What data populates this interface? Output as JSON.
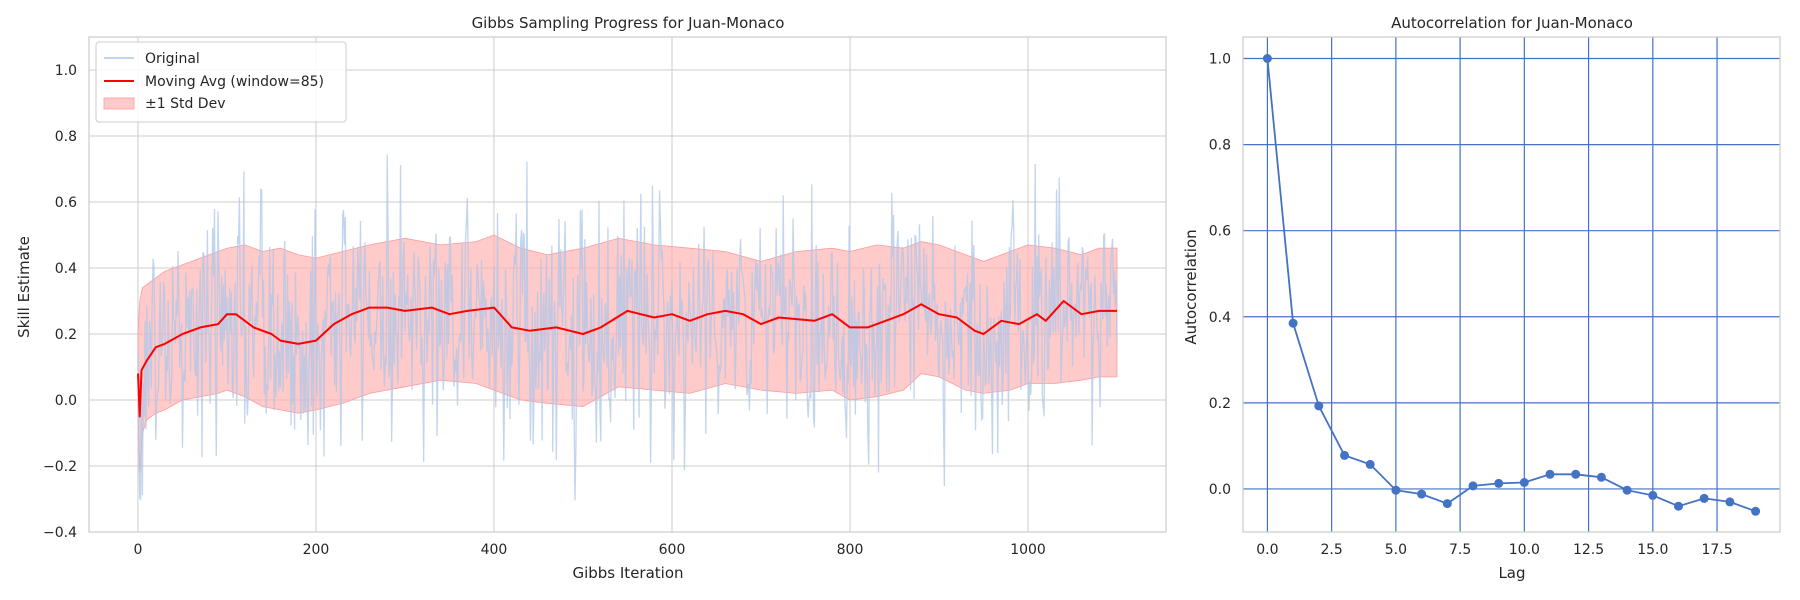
{
  "colors": {
    "grid": "#cccccc",
    "grid_right": "#4472c4",
    "spine": "#cccccc",
    "original": "#aec7e8",
    "moving_avg": "#ff0000",
    "band_fill": "#ffb3b3",
    "band_edge": "#ff9c9c",
    "acf_line": "#4472c4"
  },
  "chart_data": [
    {
      "type": "line",
      "title": "Gibbs Sampling Progress for Juan-Monaco",
      "xlabel": "Gibbs Iteration",
      "ylabel": "Skill Estimate",
      "xlim": [
        -55,
        1155
      ],
      "ylim": [
        -0.4,
        1.1
      ],
      "xticks": [
        0,
        200,
        400,
        600,
        800,
        1000
      ],
      "yticks": [
        -0.4,
        -0.2,
        0.0,
        0.2,
        0.4,
        0.6,
        0.8,
        1.0
      ],
      "xtick_labels": [
        "0",
        "200",
        "400",
        "600",
        "800",
        "1000"
      ],
      "ytick_labels": [
        "−0.4",
        "−0.2",
        "0.0",
        "0.2",
        "0.4",
        "0.6",
        "0.8",
        "1.0"
      ],
      "grid": true,
      "legend": {
        "position": "top-left",
        "entries": [
          "Original",
          "Moving Avg (window=85)",
          "±1 Std Dev"
        ]
      },
      "n_iterations": 1100,
      "moving_avg_window": 85,
      "series": [
        {
          "name": "Moving Avg (window=85)",
          "x": [
            0,
            2,
            4,
            10,
            20,
            30,
            50,
            70,
            90,
            100,
            110,
            130,
            150,
            160,
            180,
            200,
            220,
            240,
            260,
            280,
            300,
            330,
            350,
            370,
            400,
            420,
            440,
            470,
            500,
            520,
            550,
            580,
            600,
            620,
            640,
            660,
            680,
            700,
            720,
            760,
            780,
            800,
            820,
            840,
            860,
            880,
            900,
            920,
            940,
            950,
            970,
            990,
            1010,
            1020,
            1040,
            1060,
            1080,
            1100
          ],
          "y": [
            0.08,
            -0.05,
            0.09,
            0.12,
            0.16,
            0.17,
            0.2,
            0.22,
            0.23,
            0.26,
            0.26,
            0.22,
            0.2,
            0.18,
            0.17,
            0.18,
            0.23,
            0.26,
            0.28,
            0.28,
            0.27,
            0.28,
            0.26,
            0.27,
            0.28,
            0.22,
            0.21,
            0.22,
            0.2,
            0.22,
            0.27,
            0.25,
            0.26,
            0.24,
            0.26,
            0.27,
            0.26,
            0.23,
            0.25,
            0.24,
            0.26,
            0.22,
            0.22,
            0.24,
            0.26,
            0.29,
            0.26,
            0.25,
            0.21,
            0.2,
            0.24,
            0.23,
            0.26,
            0.24,
            0.3,
            0.26,
            0.27,
            0.27
          ]
        },
        {
          "name": "±1 Std Dev",
          "x": [
            0,
            2,
            5,
            10,
            20,
            30,
            50,
            70,
            90,
            100,
            120,
            140,
            160,
            180,
            200,
            230,
            260,
            300,
            340,
            380,
            400,
            430,
            460,
            500,
            540,
            580,
            620,
            660,
            700,
            740,
            780,
            800,
            830,
            860,
            880,
            900,
            930,
            950,
            980,
            1000,
            1030,
            1060,
            1080,
            1100
          ],
          "upper": [
            0.2,
            0.3,
            0.34,
            0.35,
            0.37,
            0.39,
            0.41,
            0.43,
            0.45,
            0.46,
            0.47,
            0.45,
            0.46,
            0.44,
            0.43,
            0.45,
            0.47,
            0.49,
            0.47,
            0.48,
            0.5,
            0.46,
            0.44,
            0.46,
            0.49,
            0.47,
            0.46,
            0.45,
            0.42,
            0.45,
            0.46,
            0.45,
            0.47,
            0.46,
            0.48,
            0.47,
            0.44,
            0.42,
            0.45,
            0.47,
            0.46,
            0.44,
            0.46,
            0.46
          ],
          "lower": [
            -0.02,
            -0.22,
            -0.1,
            -0.06,
            -0.04,
            -0.03,
            0.0,
            0.01,
            0.02,
            0.03,
            0.01,
            -0.02,
            -0.03,
            -0.04,
            -0.03,
            -0.01,
            0.02,
            0.04,
            0.06,
            0.05,
            0.03,
            0.0,
            -0.01,
            -0.02,
            0.04,
            0.03,
            0.02,
            0.05,
            0.03,
            0.02,
            0.03,
            0.0,
            0.01,
            0.03,
            0.08,
            0.07,
            0.03,
            0.02,
            0.03,
            0.05,
            0.05,
            0.06,
            0.07,
            0.07
          ]
        }
      ]
    },
    {
      "type": "line",
      "title": "Autocorrelation for Juan-Monaco",
      "xlabel": "Lag",
      "ylabel": "Autocorrelation",
      "xlim": [
        -0.95,
        19.95
      ],
      "ylim": [
        -0.1,
        1.05
      ],
      "xticks": [
        0.0,
        2.5,
        5.0,
        7.5,
        10.0,
        12.5,
        15.0,
        17.5
      ],
      "yticks": [
        0.0,
        0.2,
        0.4,
        0.6,
        0.8,
        1.0
      ],
      "xtick_labels": [
        "0.0",
        "2.5",
        "5.0",
        "7.5",
        "10.0",
        "12.5",
        "15.0",
        "17.5"
      ],
      "ytick_labels": [
        "0.0",
        "0.2",
        "0.4",
        "0.6",
        "0.8",
        "1.0"
      ],
      "grid": true,
      "lags": [
        0,
        1,
        2,
        3,
        4,
        5,
        6,
        7,
        8,
        9,
        10,
        11,
        12,
        13,
        14,
        15,
        16,
        17,
        18,
        19
      ],
      "values": [
        1.0,
        0.385,
        0.193,
        0.078,
        0.057,
        -0.003,
        -0.012,
        -0.034,
        0.007,
        0.013,
        0.015,
        0.034,
        0.034,
        0.027,
        -0.003,
        -0.015,
        -0.04,
        -0.022,
        -0.03,
        -0.052
      ]
    }
  ]
}
